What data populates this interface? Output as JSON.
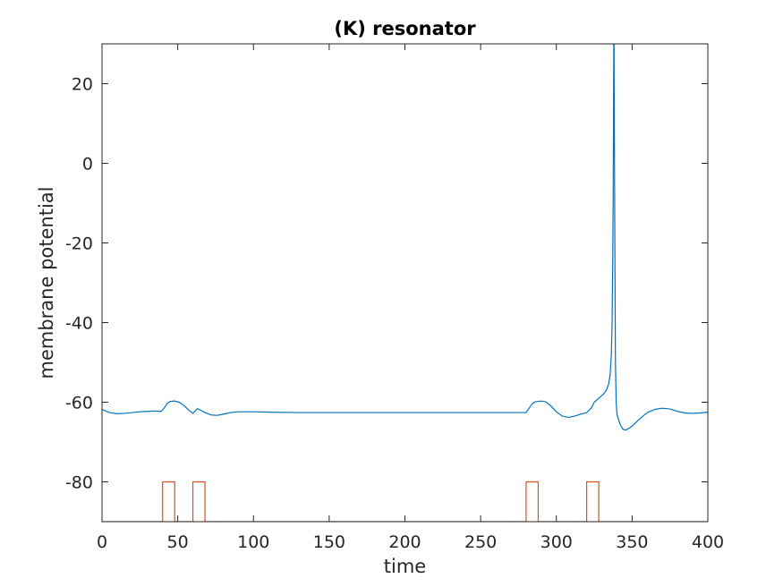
{
  "chart_data": {
    "type": "line",
    "title": "(K) resonator",
    "xlabel": "time",
    "ylabel": "membrane potential",
    "xlim": [
      0,
      400
    ],
    "ylim": [
      -90,
      30
    ],
    "xticks": [
      0,
      50,
      100,
      150,
      200,
      250,
      300,
      350,
      400
    ],
    "yticks": [
      -80,
      -60,
      -40,
      -20,
      0,
      20
    ],
    "grid": false,
    "legend": "none",
    "series": [
      {
        "color": "#0072BD",
        "points": [
          [
            0,
            -61.8
          ],
          [
            5,
            -62.6
          ],
          [
            10,
            -62.9
          ],
          [
            15,
            -62.8
          ],
          [
            20,
            -62.6
          ],
          [
            25,
            -62.4
          ],
          [
            30,
            -62.3
          ],
          [
            35,
            -62.2
          ],
          [
            39,
            -62.3
          ],
          [
            41,
            -61.5
          ],
          [
            43,
            -60.3
          ],
          [
            45,
            -59.8
          ],
          [
            48,
            -59.7
          ],
          [
            51,
            -60.0
          ],
          [
            54,
            -60.8
          ],
          [
            57,
            -61.9
          ],
          [
            60,
            -62.8
          ],
          [
            62,
            -62.0
          ],
          [
            63,
            -61.6
          ],
          [
            65,
            -62.0
          ],
          [
            68,
            -62.6
          ],
          [
            72,
            -63.2
          ],
          [
            76,
            -63.3
          ],
          [
            80,
            -63.0
          ],
          [
            85,
            -62.6
          ],
          [
            90,
            -62.4
          ],
          [
            100,
            -62.4
          ],
          [
            110,
            -62.5
          ],
          [
            130,
            -62.6
          ],
          [
            160,
            -62.6
          ],
          [
            200,
            -62.6
          ],
          [
            250,
            -62.6
          ],
          [
            280,
            -62.6
          ],
          [
            282,
            -61.5
          ],
          [
            284,
            -60.4
          ],
          [
            286,
            -59.9
          ],
          [
            290,
            -59.7
          ],
          [
            293,
            -59.9
          ],
          [
            296,
            -60.8
          ],
          [
            300,
            -62.4
          ],
          [
            304,
            -63.5
          ],
          [
            308,
            -63.8
          ],
          [
            312,
            -63.5
          ],
          [
            316,
            -63.0
          ],
          [
            320,
            -62.6
          ],
          [
            323,
            -61.5
          ],
          [
            325,
            -60.0
          ],
          [
            328,
            -59.0
          ],
          [
            331,
            -58.0
          ],
          [
            333,
            -57.0
          ],
          [
            334.5,
            -55.5
          ],
          [
            335.5,
            -53.0
          ],
          [
            336.3,
            -48.0
          ],
          [
            336.8,
            -40.0
          ],
          [
            337.2,
            -25.0
          ],
          [
            337.5,
            -10.0
          ],
          [
            337.7,
            10.0
          ],
          [
            337.9,
            30.0
          ],
          [
            338.1,
            30.0
          ],
          [
            338.3,
            8.0
          ],
          [
            338.6,
            -20.0
          ],
          [
            339,
            -50.0
          ],
          [
            339.5,
            -60.0
          ],
          [
            340,
            -63.0
          ],
          [
            342,
            -65.5
          ],
          [
            344,
            -66.8
          ],
          [
            346,
            -67.0
          ],
          [
            350,
            -66.0
          ],
          [
            355,
            -64.2
          ],
          [
            360,
            -62.6
          ],
          [
            365,
            -61.8
          ],
          [
            370,
            -61.5
          ],
          [
            375,
            -61.7
          ],
          [
            380,
            -62.3
          ],
          [
            385,
            -62.7
          ],
          [
            390,
            -62.8
          ],
          [
            395,
            -62.7
          ],
          [
            400,
            -62.5
          ]
        ]
      },
      {
        "color": "#D95319",
        "points": [
          [
            0,
            -90
          ],
          [
            40,
            -90
          ],
          [
            40,
            -80
          ],
          [
            48,
            -80
          ],
          [
            48,
            -90
          ],
          [
            60,
            -90
          ],
          [
            60,
            -80
          ],
          [
            68,
            -80
          ],
          [
            68,
            -90
          ],
          [
            280,
            -90
          ],
          [
            280,
            -80
          ],
          [
            288,
            -80
          ],
          [
            288,
            -90
          ],
          [
            320,
            -90
          ],
          [
            320,
            -80
          ],
          [
            328,
            -80
          ],
          [
            328,
            -90
          ],
          [
            400,
            -90
          ]
        ]
      }
    ]
  }
}
